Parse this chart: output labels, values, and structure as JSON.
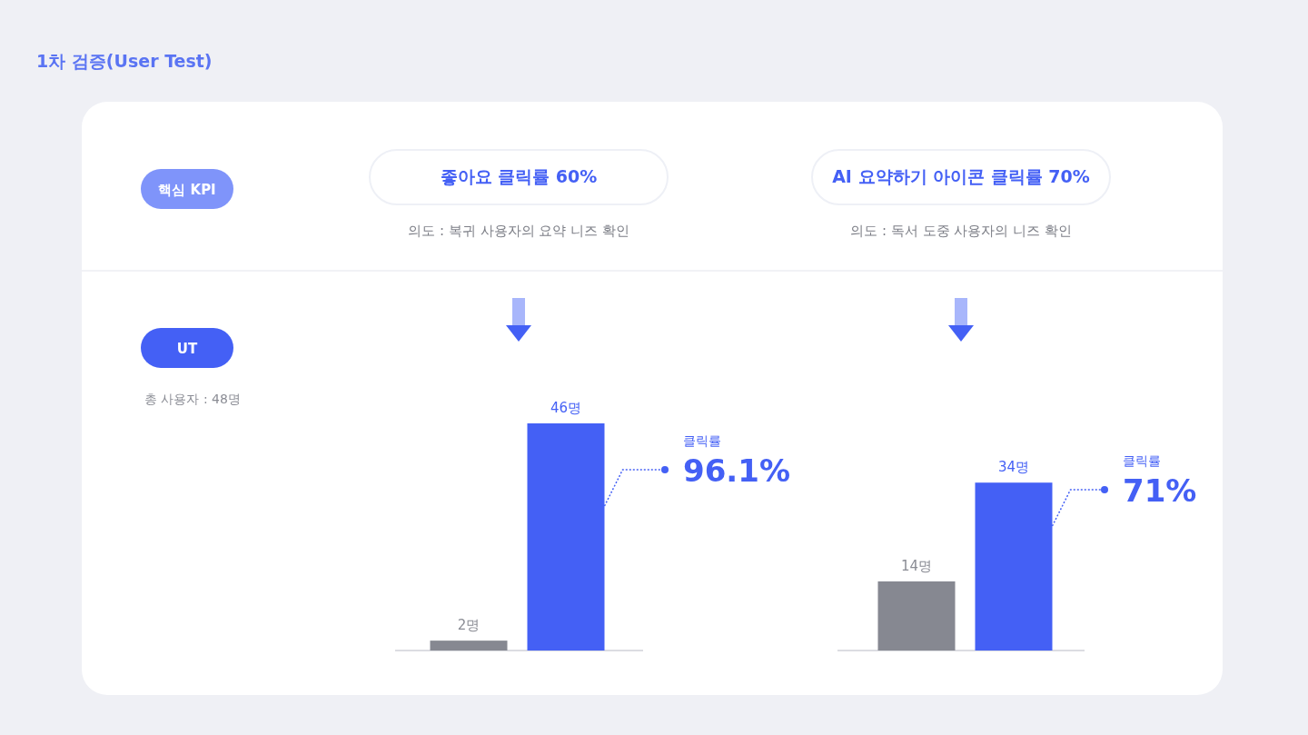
{
  "chart_data": [
    {
      "type": "other",
      "title": "1차 검증(User Test)",
      "annotations": [
        "핵심 KPI",
        "UT",
        "총 사용자 : 48명"
      ]
    },
    {
      "type": "bar",
      "title": "좋아요 클릭률 60%",
      "subtitle": "의도 : 복귀 사용자의 요약 니즈 확인",
      "categories": [
        null,
        null
      ],
      "values": [
        2,
        46
      ],
      "colors": [
        "#868891",
        "#4460f5"
      ],
      "value_labels": [
        "2명",
        "46명"
      ],
      "annotations": [
        "클릭률",
        "96.1%"
      ]
    },
    {
      "type": "bar",
      "title": "AI 요약하기 아이콘 클릭률 70%",
      "subtitle": "의도 : 독서 도중 사용자의 니즈 확인",
      "categories": [
        null,
        null
      ],
      "values": [
        14,
        34
      ],
      "colors": [
        "#868891",
        "#4460f5"
      ],
      "value_labels": [
        "14명",
        "34명"
      ],
      "annotations": [
        "클릭률",
        "71%"
      ]
    }
  ]
}
